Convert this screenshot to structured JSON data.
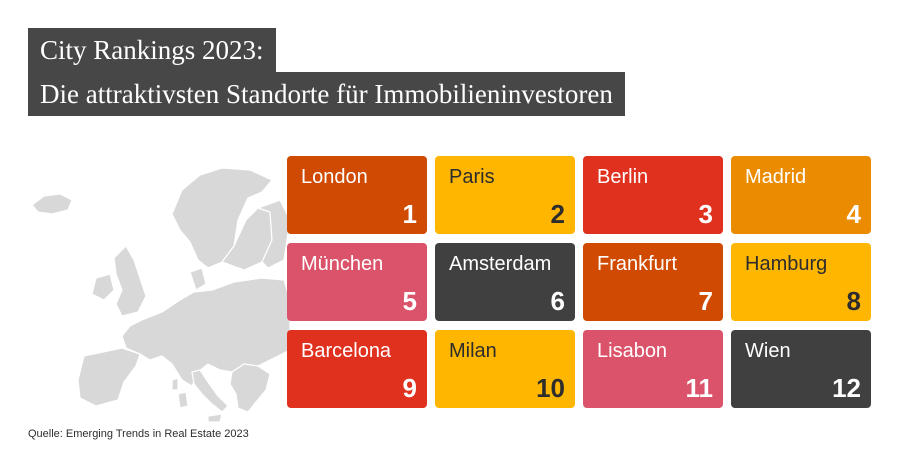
{
  "title": {
    "line1": "City Rankings 2023:",
    "line2": "Die attraktivsten Standorte für Immobilieninvestoren"
  },
  "source": "Quelle: Emerging Trends in Real Estate 2023",
  "colors": {
    "title_bg": "#474747",
    "orange_red": "#d04a02",
    "yellow": "#ffb600",
    "red": "#e0301e",
    "orange": "#eb8c00",
    "pink": "#db536a",
    "dark_gray": "#404040",
    "map_gray": "#d8d8d8"
  },
  "rankings": [
    {
      "city": "London",
      "rank": "1",
      "color": "#d04a02",
      "dark_text": false
    },
    {
      "city": "Paris",
      "rank": "2",
      "color": "#ffb600",
      "dark_text": true
    },
    {
      "city": "Berlin",
      "rank": "3",
      "color": "#e0301e",
      "dark_text": false
    },
    {
      "city": "Madrid",
      "rank": "4",
      "color": "#eb8c00",
      "dark_text": false
    },
    {
      "city": "München",
      "rank": "5",
      "color": "#db536a",
      "dark_text": false
    },
    {
      "city": "Amsterdam",
      "rank": "6",
      "color": "#404040",
      "dark_text": false
    },
    {
      "city": "Frankfurt",
      "rank": "7",
      "color": "#d04a02",
      "dark_text": false
    },
    {
      "city": "Hamburg",
      "rank": "8",
      "color": "#ffb600",
      "dark_text": true
    },
    {
      "city": "Barcelona",
      "rank": "9",
      "color": "#e0301e",
      "dark_text": false
    },
    {
      "city": "Milan",
      "rank": "10",
      "color": "#ffb600",
      "dark_text": true
    },
    {
      "city": "Lisabon",
      "rank": "11",
      "color": "#db536a",
      "dark_text": false
    },
    {
      "city": "Wien",
      "rank": "12",
      "color": "#404040",
      "dark_text": false
    }
  ]
}
